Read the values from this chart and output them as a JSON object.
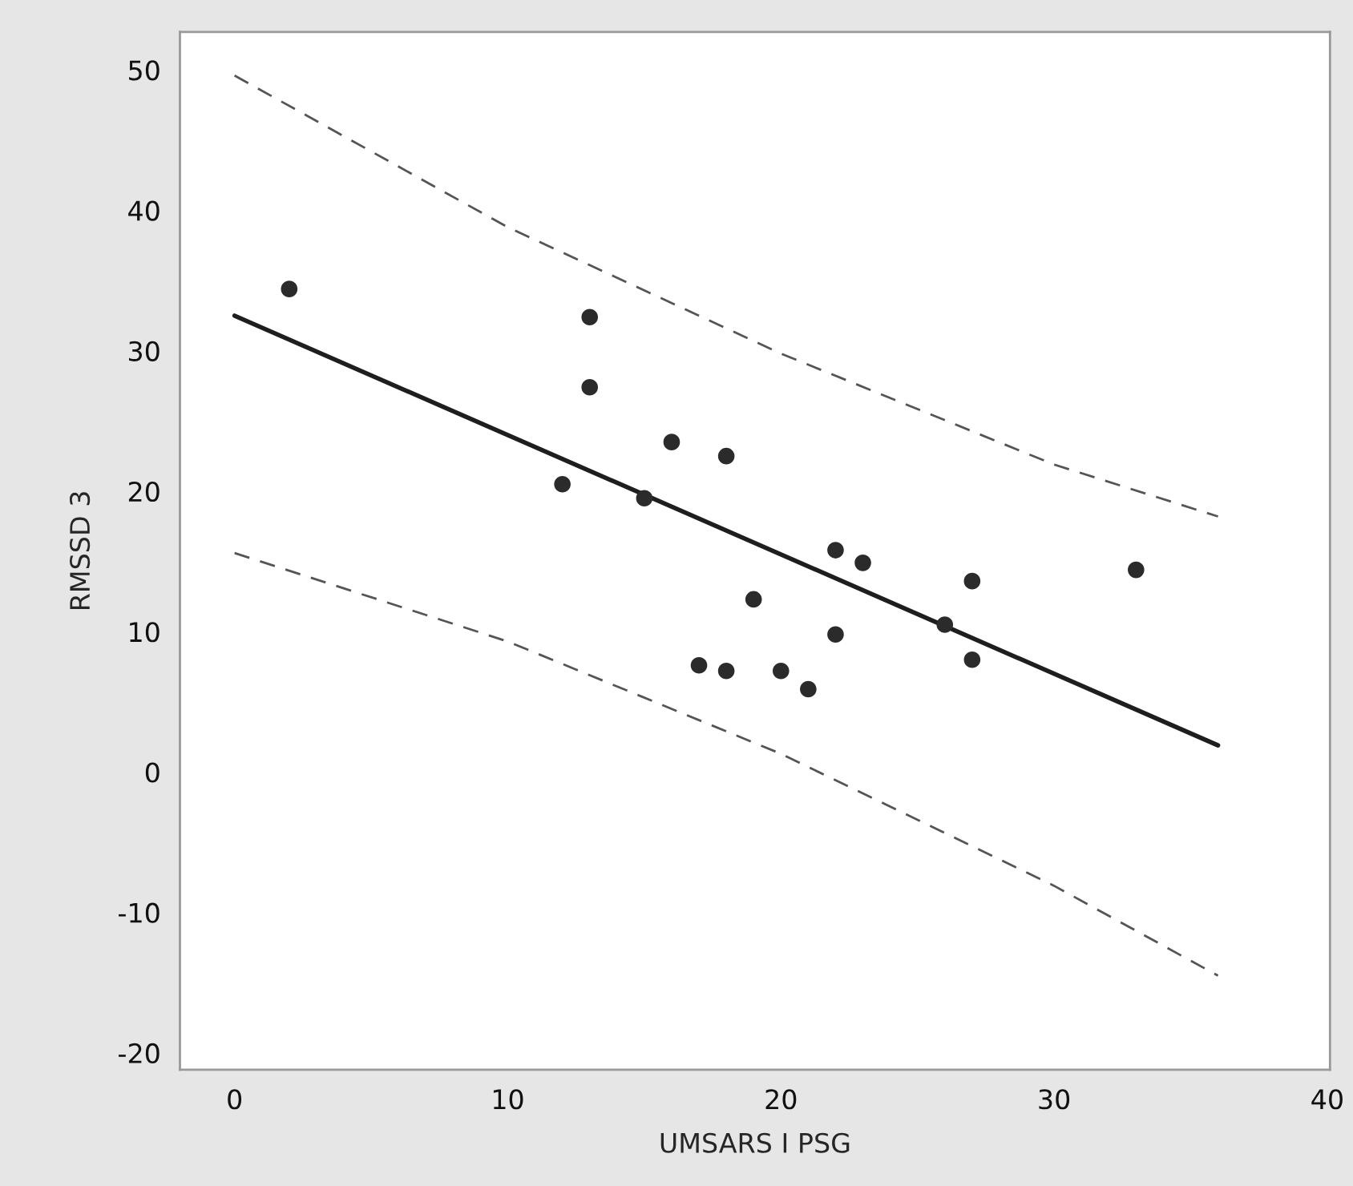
{
  "chart_data": {
    "type": "scatter",
    "xlabel": "UMSARS I PSG",
    "ylabel": "RMSSD 3",
    "xlim": [
      -2,
      40.1
    ],
    "ylim": [
      -21.2,
      52.7
    ],
    "xticks": [
      0,
      10,
      20,
      30,
      40
    ],
    "yticks": [
      -20,
      -10,
      0,
      10,
      20,
      30,
      40,
      50
    ],
    "grid": false,
    "legend": false,
    "series": [
      {
        "color": "#2b2b2b",
        "marker": "circle",
        "x": [
          2,
          12,
          13,
          13,
          15,
          16,
          17,
          18,
          18,
          19,
          20,
          21,
          22,
          22,
          23,
          26,
          27,
          27,
          33
        ],
        "values": [
          34.4,
          20.5,
          32.4,
          27.4,
          19.5,
          23.5,
          7.6,
          22.5,
          7.2,
          12.3,
          7.2,
          5.9,
          15.8,
          9.8,
          14.9,
          10.5,
          13.6,
          8.0,
          14.4
        ]
      },
      {
        "type": "line",
        "color": "#1e1e1e",
        "line_style": "solid",
        "x": [
          0,
          36
        ],
        "values": [
          32.5,
          1.9
        ]
      },
      {
        "type": "line",
        "color": "#555555",
        "line_style": "dashed",
        "x": [
          0,
          10,
          20,
          30,
          36
        ],
        "values": [
          49.6,
          38.8,
          29.8,
          21.9,
          18.2
        ]
      },
      {
        "type": "line",
        "color": "#555555",
        "line_style": "dashed",
        "x": [
          0,
          10,
          20,
          30,
          36
        ],
        "values": [
          15.6,
          9.3,
          1.3,
          -8.1,
          -14.5
        ]
      }
    ]
  }
}
